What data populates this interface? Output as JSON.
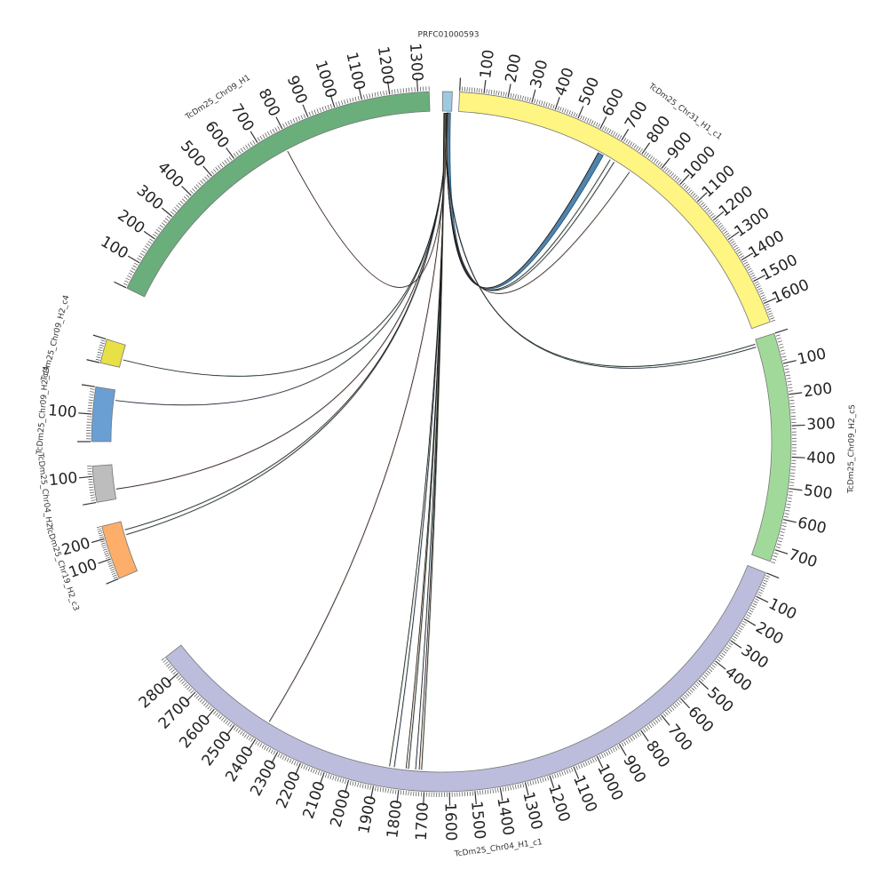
{
  "diagram": {
    "type": "circos",
    "segments": [
      {
        "id": "prfc",
        "name": "PRFC01000593",
        "color": "#9ecae1",
        "length": 40,
        "tick_step": 0,
        "labels": []
      },
      {
        "id": "chr31h1c1",
        "name": "TcDm25_Chr31_H1_c1",
        "color": "#fff582",
        "length": 1680,
        "tick_step": 100,
        "labels": [
          "100",
          "200",
          "300",
          "400",
          "500",
          "600",
          "700",
          "800",
          "900",
          "1000",
          "1100",
          "1200",
          "1300",
          "1400",
          "1500",
          "1600"
        ]
      },
      {
        "id": "chr09h2c5",
        "name": "TcDm25_Chr09_H2_c5",
        "color": "#a1d99b",
        "length": 740,
        "tick_step": 100,
        "labels": [
          "100",
          "200",
          "300",
          "400",
          "500",
          "600",
          "700"
        ]
      },
      {
        "id": "chr04h1c1",
        "name": "TcDm25_Chr04_H1_c1",
        "color": "#bcbddc",
        "length": 2880,
        "tick_step": 100,
        "labels": [
          "100",
          "200",
          "300",
          "400",
          "500",
          "600",
          "700",
          "800",
          "900",
          "1000",
          "1100",
          "1200",
          "1300",
          "1400",
          "1500",
          "1600",
          "1700",
          "1800",
          "1900",
          "2000",
          "2100",
          "2200",
          "2300",
          "2400",
          "2500",
          "2600",
          "2700",
          "2800"
        ]
      },
      {
        "id": "chr19h2c3",
        "name": "TcDm25_Chr19_H2_c3",
        "color": "#fdae6b",
        "length": 260,
        "tick_step": 100,
        "labels": [
          "100",
          "200"
        ]
      },
      {
        "id": "chr04h2",
        "name": "TcDm25_Chr04_H2",
        "color": "#bdbdbd",
        "length": 140,
        "tick_step": 100,
        "labels": [
          "100"
        ]
      },
      {
        "id": "chr09h2b",
        "name": "TcDm25_Chr09_H2_c4",
        "color": "#6a9fd4",
        "length": 200,
        "tick_step": 100,
        "labels": [
          "100"
        ]
      },
      {
        "id": "chr09h2a",
        "name": "TcDm25_Chr09_H2_c4",
        "color": "#e7e047",
        "length": 100,
        "tick_step": 100,
        "labels": []
      },
      {
        "id": "chr09h1",
        "name": "TcDm25_Chr09_H1",
        "color": "#6aae7c",
        "length": 1340,
        "tick_step": 100,
        "labels": [
          "100",
          "200",
          "300",
          "400",
          "500",
          "600",
          "700",
          "800",
          "900",
          "1000",
          "1100",
          "1200",
          "1300"
        ]
      }
    ],
    "links": [
      {
        "from": "prfc",
        "from_pos": 20,
        "to": "chr31h1c1",
        "to_pos": 640,
        "band": true
      },
      {
        "from": "prfc",
        "from_pos": 18,
        "to": "chr31h1c1",
        "to_pos": 700
      },
      {
        "from": "prfc",
        "from_pos": 17,
        "to": "chr31h1c1",
        "to_pos": 720
      },
      {
        "from": "prfc",
        "from_pos": 16,
        "to": "chr31h1c1",
        "to_pos": 800
      },
      {
        "from": "prfc",
        "from_pos": 15,
        "to": "chr09h2c5",
        "to_pos": 15
      },
      {
        "from": "prfc",
        "from_pos": 14,
        "to": "chr09h2c5",
        "to_pos": 25
      },
      {
        "from": "prfc",
        "from_pos": 25,
        "to": "chr09h1",
        "to_pos": 780
      },
      {
        "from": "prfc",
        "from_pos": 24,
        "to": "chr09h2a",
        "to_pos": 35
      },
      {
        "from": "prfc",
        "from_pos": 23,
        "to": "chr09h2b",
        "to_pos": 160
      },
      {
        "from": "prfc",
        "from_pos": 22,
        "to": "chr04h2",
        "to_pos": 40
      },
      {
        "from": "prfc",
        "from_pos": 21,
        "to": "chr19h2c3",
        "to_pos": 215
      },
      {
        "from": "prfc",
        "from_pos": 20,
        "to": "chr19h2c3",
        "to_pos": 190
      },
      {
        "from": "prfc",
        "from_pos": 19,
        "to": "chr04h1c1",
        "to_pos": 2390
      },
      {
        "from": "prfc",
        "from_pos": 12,
        "to": "chr04h1c1",
        "to_pos": 1850
      },
      {
        "from": "prfc",
        "from_pos": 11,
        "to": "chr04h1c1",
        "to_pos": 1830
      },
      {
        "from": "prfc",
        "from_pos": 10,
        "to": "chr04h1c1",
        "to_pos": 1780
      },
      {
        "from": "prfc",
        "from_pos": 9,
        "to": "chr04h1c1",
        "to_pos": 1770
      },
      {
        "from": "prfc",
        "from_pos": 8,
        "to": "chr04h1c1",
        "to_pos": 1740
      },
      {
        "from": "prfc",
        "from_pos": 7,
        "to": "chr04h1c1",
        "to_pos": 1725
      },
      {
        "from": "prfc",
        "from_pos": 6,
        "to": "chr04h1c1",
        "to_pos": 1715
      }
    ]
  }
}
